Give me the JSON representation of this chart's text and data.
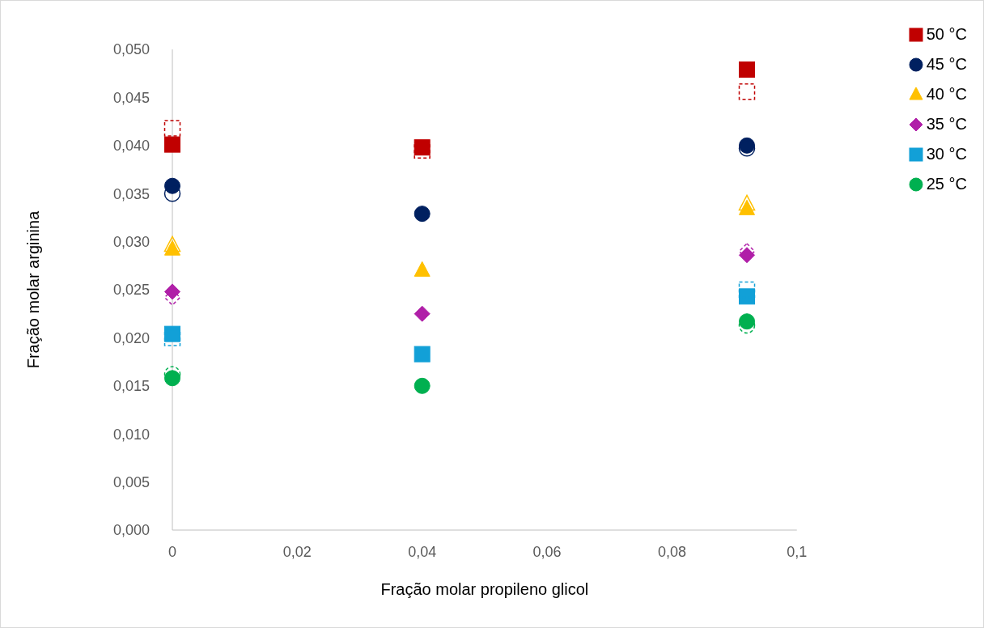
{
  "chart_data": {
    "type": "scatter",
    "xlabel": "Fração molar propileno glicol",
    "ylabel": "Fração molar arginina",
    "x": [
      0,
      0.04,
      0.092
    ],
    "xlim": [
      0,
      0.1
    ],
    "xticks": [
      {
        "value": 0,
        "label": "0"
      },
      {
        "value": 0.02,
        "label": "0,02"
      },
      {
        "value": 0.04,
        "label": "0,04"
      },
      {
        "value": 0.06,
        "label": "0,06"
      },
      {
        "value": 0.08,
        "label": "0,08"
      },
      {
        "value": 0.1,
        "label": "0,1"
      }
    ],
    "ylim": [
      0,
      0.05
    ],
    "yticks": [
      {
        "value": 0,
        "label": "0,000"
      },
      {
        "value": 0.005,
        "label": "0,005"
      },
      {
        "value": 0.01,
        "label": "0,010"
      },
      {
        "value": 0.015,
        "label": "0,015"
      },
      {
        "value": 0.02,
        "label": "0,020"
      },
      {
        "value": 0.025,
        "label": "0,025"
      },
      {
        "value": 0.03,
        "label": "0,030"
      },
      {
        "value": 0.035,
        "label": "0,035"
      },
      {
        "value": 0.04,
        "label": "0,040"
      },
      {
        "value": 0.045,
        "label": "0,045"
      },
      {
        "value": 0.05,
        "label": "0,050"
      }
    ],
    "grid": false,
    "legend": "top right",
    "series": [
      {
        "name": "50 °C",
        "color": "#c00000",
        "marker": "square",
        "values": [
          0.0401,
          0.0398,
          0.0479
        ]
      },
      {
        "name": "45 °C",
        "color": "#002060",
        "marker": "circle",
        "values": [
          0.0358,
          0.0329,
          0.04
        ]
      },
      {
        "name": "40 °C",
        "color": "#ffc000",
        "marker": "triangle",
        "values": [
          0.0292,
          0.027,
          0.0334
        ]
      },
      {
        "name": "35 °C",
        "color": "#b01fa8",
        "marker": "diamond",
        "values": [
          0.0248,
          0.0225,
          0.0286
        ]
      },
      {
        "name": "30 °C",
        "color": "#12a0d7",
        "marker": "square",
        "values": [
          0.0204,
          0.0183,
          0.0243
        ]
      },
      {
        "name": "25 °C",
        "color": "#00b050",
        "marker": "circle",
        "values": [
          0.0158,
          0.015,
          0.0217
        ]
      },
      {
        "color": "#c00000",
        "marker": "square",
        "line_style": "dashed",
        "values": [
          0.0418,
          0.0395,
          0.0456
        ]
      },
      {
        "color": "#002060",
        "marker": "circle",
        "line_style": "solid",
        "values": [
          0.035,
          null,
          0.0397
        ]
      },
      {
        "color": "#ffc000",
        "marker": "triangle",
        "line_style": "solid",
        "values": [
          0.0296,
          null,
          0.0339
        ]
      },
      {
        "color": "#b01fa8",
        "marker": "diamond",
        "line_style": "dashed",
        "values": [
          0.0242,
          null,
          0.029
        ]
      },
      {
        "color": "#12a0d7",
        "marker": "square",
        "line_style": "dashed",
        "values": [
          0.02,
          null,
          0.025
        ]
      },
      {
        "color": "#00b050",
        "marker": "circle",
        "line_style": "dashed",
        "values": [
          0.0162,
          null,
          0.0213
        ]
      }
    ]
  }
}
